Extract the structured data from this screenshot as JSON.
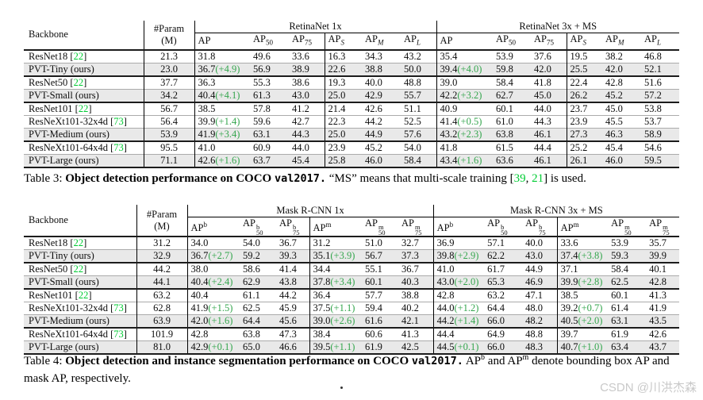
{
  "watermark": "CSDN @川洪杰森",
  "artifact_dot": ".",
  "table3": {
    "header": {
      "backbone": "Backbone",
      "param": [
        "#Param",
        "(M)"
      ],
      "groups": [
        "RetinaNet 1x",
        "RetinaNet 3x + MS"
      ],
      "columns": [
        {
          "base": "AP"
        },
        {
          "base": "AP",
          "sub": "50"
        },
        {
          "base": "AP",
          "sub": "75"
        },
        {
          "base": "AP",
          "sub": "S",
          "it": true
        },
        {
          "base": "AP",
          "sub": "M",
          "it": true
        },
        {
          "base": "AP",
          "sub": "L",
          "it": true
        }
      ]
    },
    "rows": [
      {
        "backbone": "ResNet18 [22]",
        "param": "21.3",
        "vals": [
          "31.8",
          "49.6",
          "33.6",
          "16.3",
          "34.3",
          "43.2",
          "35.4",
          "53.9",
          "37.6",
          "19.5",
          "38.2",
          "46.8"
        ]
      },
      {
        "backbone": "PVT-Tiny (ours)",
        "param": "23.0",
        "hl": true,
        "vals": [
          "36.7(+4.9)",
          "56.9",
          "38.9",
          "22.6",
          "38.8",
          "50.0",
          "39.4(+4.0)",
          "59.8",
          "42.0",
          "25.5",
          "42.0",
          "52.1"
        ]
      },
      {
        "backbone": "ResNet50 [22]",
        "param": "37.7",
        "gstart": true,
        "vals": [
          "36.3",
          "55.3",
          "38.6",
          "19.3",
          "40.0",
          "48.8",
          "39.0",
          "58.4",
          "41.8",
          "22.4",
          "42.8",
          "51.6"
        ]
      },
      {
        "backbone": "PVT-Small (ours)",
        "param": "34.2",
        "hl": true,
        "vals": [
          "40.4(+4.1)",
          "61.3",
          "43.0",
          "25.0",
          "42.9",
          "55.7",
          "42.2(+3.2)",
          "62.7",
          "45.0",
          "26.2",
          "45.2",
          "57.2"
        ]
      },
      {
        "backbone": "ResNet101 [22]",
        "param": "56.7",
        "gstart": true,
        "vals": [
          "38.5",
          "57.8",
          "41.2",
          "21.4",
          "42.6",
          "51.1",
          "40.9",
          "60.1",
          "44.0",
          "23.7",
          "45.0",
          "53.8"
        ]
      },
      {
        "backbone": "ResNeXt101-32x4d [73]",
        "param": "56.4",
        "vals": [
          "39.9(+1.4)",
          "59.6",
          "42.7",
          "22.3",
          "44.2",
          "52.5",
          "41.4(+0.5)",
          "61.0",
          "44.3",
          "23.9",
          "45.5",
          "53.7"
        ]
      },
      {
        "backbone": "PVT-Medium (ours)",
        "param": "53.9",
        "hl": true,
        "vals": [
          "41.9(+3.4)",
          "63.1",
          "44.3",
          "25.0",
          "44.9",
          "57.6",
          "43.2(+2.3)",
          "63.8",
          "46.1",
          "27.3",
          "46.3",
          "58.9"
        ]
      },
      {
        "backbone": "ResNeXt101-64x4d [73]",
        "param": "95.5",
        "gstart": true,
        "vals": [
          "41.0",
          "60.9",
          "44.0",
          "23.9",
          "45.2",
          "54.0",
          "41.8",
          "61.5",
          "44.4",
          "25.2",
          "45.4",
          "54.6"
        ]
      },
      {
        "backbone": "PVT-Large (ours)",
        "param": "71.1",
        "hl": true,
        "vals": [
          "42.6(+1.6)",
          "63.7",
          "45.4",
          "25.8",
          "46.0",
          "58.4",
          "43.4(+1.6)",
          "63.6",
          "46.1",
          "26.1",
          "46.0",
          "59.5"
        ]
      }
    ],
    "caption": [
      {
        "t": "Table 3: ",
        "s": "plain"
      },
      {
        "t": "Object detection performance on COCO ",
        "s": "bold"
      },
      {
        "t": "val2017.",
        "s": "boldcode"
      },
      {
        "t": " “MS” means that multi-scale training [",
        "s": "plain"
      },
      {
        "t": "39",
        "s": "cite"
      },
      {
        "t": ", ",
        "s": "plain"
      },
      {
        "t": "21",
        "s": "cite"
      },
      {
        "t": "] is used.",
        "s": "plain"
      }
    ]
  },
  "table4": {
    "header": {
      "backbone": "Backbone",
      "param": [
        "#Param",
        "(M)"
      ],
      "groups": [
        "Mask R-CNN 1x",
        "Mask R-CNN 3x + MS"
      ],
      "columns": [
        {
          "base": "AP",
          "sup": "b"
        },
        {
          "base": "AP",
          "sup": "b",
          "sub": "50"
        },
        {
          "base": "AP",
          "sup": "b",
          "sub": "75"
        },
        {
          "base": "AP",
          "sup": "m"
        },
        {
          "base": "AP",
          "sup": "m",
          "sub": "50"
        },
        {
          "base": "AP",
          "sup": "m",
          "sub": "75"
        }
      ]
    },
    "rows": [
      {
        "backbone": "ResNet18 [22]",
        "param": "31.2",
        "vals": [
          "34.0",
          "54.0",
          "36.7",
          "31.2",
          "51.0",
          "32.7",
          "36.9",
          "57.1",
          "40.0",
          "33.6",
          "53.9",
          "35.7"
        ]
      },
      {
        "backbone": "PVT-Tiny (ours)",
        "param": "32.9",
        "hl": true,
        "vals": [
          "36.7(+2.7)",
          "59.2",
          "39.3",
          "35.1(+3.9)",
          "56.7",
          "37.3",
          "39.8(+2.9)",
          "62.2",
          "43.0",
          "37.4(+3.8)",
          "59.3",
          "39.9"
        ]
      },
      {
        "backbone": "ResNet50 [22]",
        "param": "44.2",
        "gstart": true,
        "vals": [
          "38.0",
          "58.6",
          "41.4",
          "34.4",
          "55.1",
          "36.7",
          "41.0",
          "61.7",
          "44.9",
          "37.1",
          "58.4",
          "40.1"
        ]
      },
      {
        "backbone": "PVT-Small (ours)",
        "param": "44.1",
        "hl": true,
        "vals": [
          "40.4(+2.4)",
          "62.9",
          "43.8",
          "37.8(+3.4)",
          "60.1",
          "40.3",
          "43.0(+2.0)",
          "65.3",
          "46.9",
          "39.9(+2.8)",
          "62.5",
          "42.8"
        ]
      },
      {
        "backbone": "ResNet101 [22]",
        "param": "63.2",
        "gstart": true,
        "vals": [
          "40.4",
          "61.1",
          "44.2",
          "36.4",
          "57.7",
          "38.8",
          "42.8",
          "63.2",
          "47.1",
          "38.5",
          "60.1",
          "41.3"
        ]
      },
      {
        "backbone": "ResNeXt101-32x4d [73]",
        "param": "62.8",
        "vals": [
          "41.9(+1.5)",
          "62.5",
          "45.9",
          "37.5(+1.1)",
          "59.4",
          "40.2",
          "44.0(+1.2)",
          "64.4",
          "48.0",
          "39.2(+0.7)",
          "61.4",
          "41.9"
        ]
      },
      {
        "backbone": "PVT-Medium (ours)",
        "param": "63.9",
        "hl": true,
        "vals": [
          "42.0(+1.6)",
          "64.4",
          "45.6",
          "39.0(+2.6)",
          "61.6",
          "42.1",
          "44.2(+1.4)",
          "66.0",
          "48.2",
          "40.5(+2.0)",
          "63.1",
          "43.5"
        ]
      },
      {
        "backbone": "ResNeXt101-64x4d [73]",
        "param": "101.9",
        "gstart": true,
        "vals": [
          "42.8",
          "63.8",
          "47.3",
          "38.4",
          "60.6",
          "41.3",
          "44.4",
          "64.9",
          "48.8",
          "39.7",
          "61.9",
          "42.6"
        ]
      },
      {
        "backbone": "PVT-Large (ours)",
        "param": "81.0",
        "hl": true,
        "vals": [
          "42.9(+0.1)",
          "65.0",
          "46.6",
          "39.5(+1.1)",
          "61.9",
          "42.5",
          "44.5(+0.1)",
          "66.0",
          "48.3",
          "40.7(+1.0)",
          "63.4",
          "43.7"
        ]
      }
    ],
    "caption": [
      {
        "t": "Table 4: ",
        "s": "plain"
      },
      {
        "t": "Object detection and instance segmentation performance on COCO ",
        "s": "bold"
      },
      {
        "t": "val2017.",
        "s": "boldcode"
      },
      {
        "t": " AP",
        "s": "plain"
      },
      {
        "t": "b",
        "s": "sup"
      },
      {
        "t": " and AP",
        "s": "plain"
      },
      {
        "t": "m",
        "s": "sup"
      },
      {
        "t": " denote bounding box AP and mask AP, respectively.",
        "s": "plain"
      }
    ]
  }
}
